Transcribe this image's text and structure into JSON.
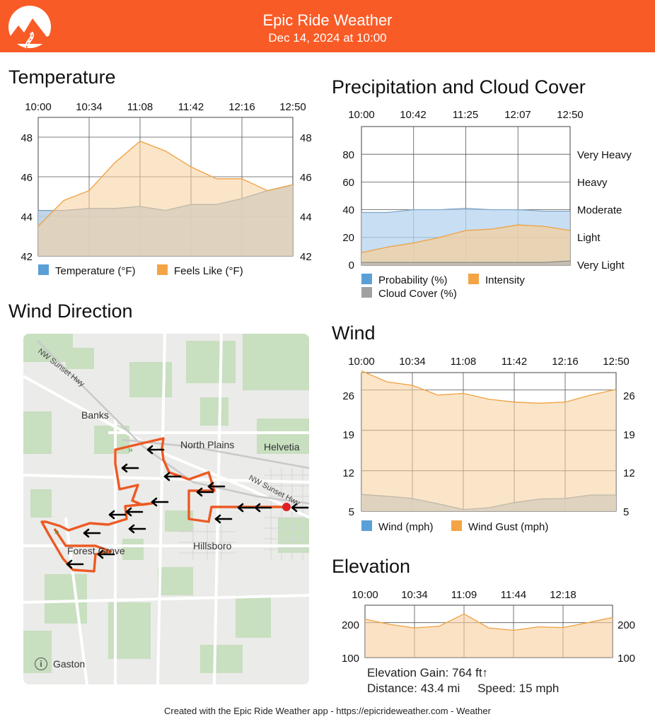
{
  "header": {
    "title": "Epic Ride Weather",
    "date": "Dec 14, 2024 at 10:00",
    "logo_icon": "mountain-road-logo-icon",
    "color": "#f95b26"
  },
  "temperature": {
    "title": "Temperature",
    "legend": {
      "temperature": "Temperature (°F)",
      "feels_like": "Feels Like (°F)"
    },
    "x_ticks": [
      "10:00",
      "10:34",
      "11:08",
      "11:42",
      "12:16",
      "12:50"
    ],
    "y_ticks": [
      "48",
      "46",
      "44",
      "42"
    ],
    "colors": {
      "temperature": "#5a9fd6",
      "feels_like": "#f4a445"
    }
  },
  "precip": {
    "title": "Precipitation and Cloud Cover",
    "x_ticks": [
      "10:00",
      "10:42",
      "11:25",
      "12:07",
      "12:50"
    ],
    "y_ticks": [
      "80",
      "60",
      "40",
      "20",
      "0"
    ],
    "intensity_labels": [
      "Very Heavy",
      "Heavy",
      "Moderate",
      "Light",
      "Very Light"
    ],
    "legend": {
      "probability": "Probability (%)",
      "intensity": "Intensity",
      "cloud": "Cloud Cover (%)"
    },
    "colors": {
      "probability": "#5a9fd6",
      "intensity": "#f4a445",
      "cloud": "#a0a0a0"
    }
  },
  "wind": {
    "title": "Wind",
    "x_ticks": [
      "10:00",
      "10:34",
      "11:08",
      "11:42",
      "12:16",
      "12:50"
    ],
    "y_ticks": [
      "26",
      "19",
      "12",
      "5"
    ],
    "legend": {
      "wind": "Wind (mph)",
      "gust": "Wind Gust (mph)"
    }
  },
  "elevation": {
    "title": "Elevation",
    "x_ticks": [
      "10:00",
      "10:34",
      "11:09",
      "11:44",
      "12:18"
    ],
    "y_ticks": [
      "200",
      "100"
    ],
    "gain": "Elevation Gain: 764 ft↑",
    "distance": "Distance: 43.4 mi",
    "speed": "Speed: 15 mph"
  },
  "wind_direction": {
    "title": "Wind Direction",
    "places": [
      "NW Sunset Hwy",
      "Banks",
      "North Plains",
      "Helvetia",
      "NW Sunset Hwy",
      "Forest Grove",
      "Hillsboro",
      "Gaston"
    ],
    "route_color": "#ec5a24"
  },
  "footer": "Created with the Epic Ride Weather app - https://epicrideweather.com -  Weather",
  "chart_data": [
    {
      "type": "area",
      "title": "Temperature",
      "x": [
        "10:00",
        "10:17",
        "10:34",
        "10:51",
        "11:08",
        "11:25",
        "11:42",
        "11:59",
        "12:16",
        "12:33",
        "12:50"
      ],
      "ylim": [
        42,
        49
      ],
      "series": [
        {
          "name": "Temperature (°F)",
          "values": [
            44.3,
            44.3,
            44.4,
            44.4,
            44.5,
            44.3,
            44.6,
            44.6,
            44.9,
            45.3,
            45.6
          ]
        },
        {
          "name": "Feels Like (°F)",
          "values": [
            43.5,
            44.8,
            45.3,
            46.7,
            47.8,
            47.3,
            46.5,
            45.9,
            45.9,
            45.3,
            45.6
          ]
        }
      ]
    },
    {
      "type": "area",
      "title": "Precipitation and Cloud Cover",
      "x": [
        "10:00",
        "10:21",
        "10:42",
        "11:03",
        "11:25",
        "11:46",
        "12:07",
        "12:28",
        "12:50"
      ],
      "ylim": [
        0,
        100
      ],
      "series": [
        {
          "name": "Probability (%)",
          "values": [
            38,
            38,
            40,
            40,
            41,
            40,
            40,
            39,
            39
          ]
        },
        {
          "name": "Intensity",
          "values": [
            9,
            13,
            16,
            20,
            25,
            26,
            29,
            28,
            25
          ]
        },
        {
          "name": "Cloud Cover (%)",
          "values": [
            2,
            2,
            2,
            2,
            2,
            2,
            2,
            2,
            3
          ]
        }
      ]
    },
    {
      "type": "area",
      "title": "Wind",
      "x": [
        "10:00",
        "10:17",
        "10:34",
        "10:51",
        "11:08",
        "11:25",
        "11:42",
        "11:59",
        "12:16",
        "12:33",
        "12:50"
      ],
      "ylim": [
        5,
        29
      ],
      "series": [
        {
          "name": "Wind (mph)",
          "values": [
            7.9,
            7.6,
            7.2,
            6.3,
            5.3,
            5.6,
            6.5,
            7.1,
            7.2,
            7.8,
            7.8
          ]
        },
        {
          "name": "Wind Gust (mph)",
          "values": [
            29.3,
            27.4,
            26.8,
            25.1,
            25.4,
            24.4,
            23.9,
            23.7,
            23.9,
            25.1,
            26.1
          ]
        }
      ]
    },
    {
      "type": "area",
      "title": "Elevation",
      "x": [
        "10:00",
        "10:17",
        "10:34",
        "10:51",
        "11:09",
        "11:26",
        "11:44",
        "12:01",
        "12:18",
        "12:35",
        "12:50"
      ],
      "ylim": [
        100,
        250
      ],
      "series": [
        {
          "name": "Elevation",
          "values": [
            210,
            195,
            185,
            190,
            225,
            185,
            178,
            188,
            186,
            200,
            215
          ]
        }
      ]
    }
  ]
}
